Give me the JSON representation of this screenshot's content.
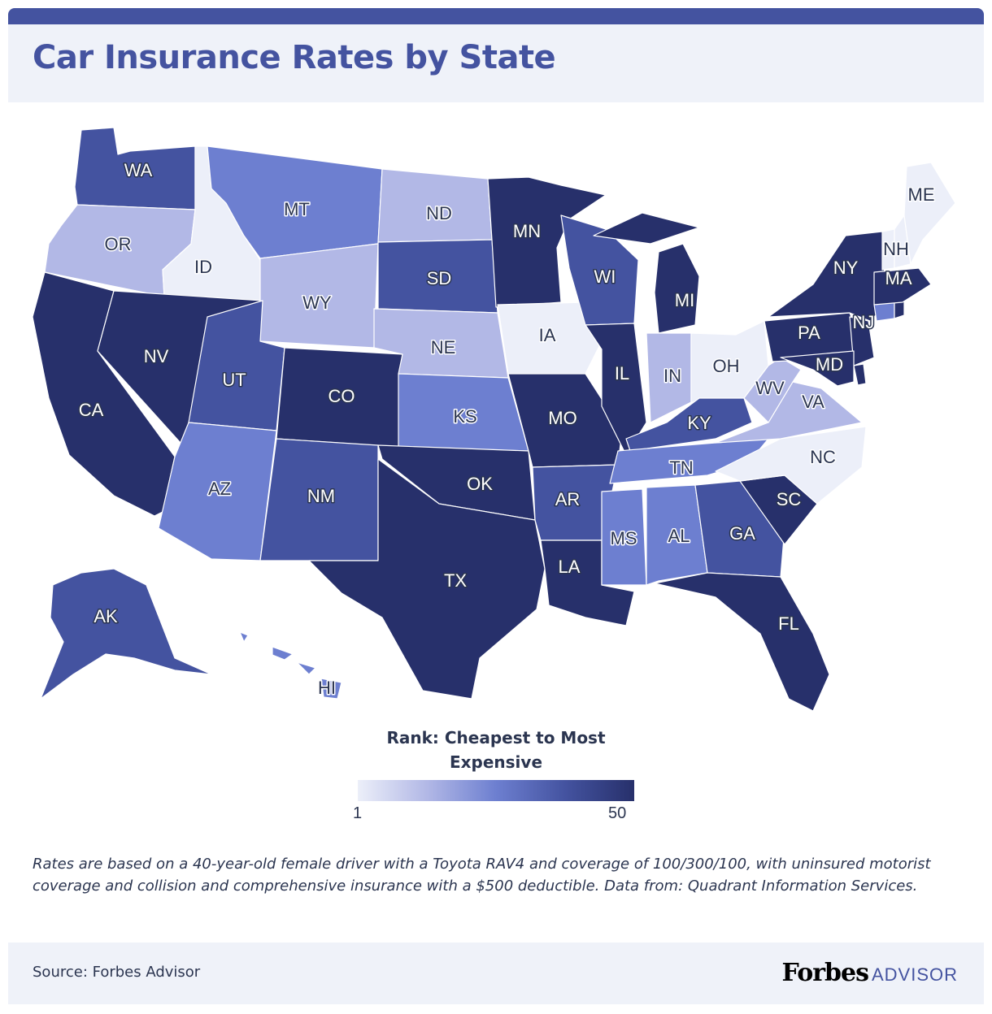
{
  "title": "Car Insurance Rates by State",
  "legend": {
    "title": "Rank: Cheapest to Most Expensive",
    "min": "1",
    "max": "50",
    "colors": [
      "#eceff9",
      "#b2b8e6",
      "#6d7fd0",
      "#4453a0",
      "#27306b"
    ]
  },
  "note": "Rates are based on a 40-year-old female driver with a Toyota RAV4 and coverage of 100/300/100, with uninsured motorist coverage and collision and comprehensive insurance with a $500 deductible. Data from: Quadrant Information Services.",
  "source": "Source: Forbes Advisor",
  "brand": {
    "main": "Forbes",
    "sub": "ADVISOR"
  },
  "states": {
    "WA": {
      "label": "WA",
      "level": 3
    },
    "OR": {
      "label": "OR",
      "level": 1
    },
    "CA": {
      "label": "CA",
      "level": 4
    },
    "ID": {
      "label": "ID",
      "level": 0
    },
    "NV": {
      "label": "NV",
      "level": 5
    },
    "MT": {
      "label": "MT",
      "level": 2
    },
    "WY": {
      "label": "WY",
      "level": 1
    },
    "UT": {
      "label": "UT",
      "level": 3
    },
    "AZ": {
      "label": "AZ",
      "level": 2
    },
    "CO": {
      "label": "CO",
      "level": 5
    },
    "NM": {
      "label": "NM",
      "level": 3
    },
    "ND": {
      "label": "ND",
      "level": 1
    },
    "SD": {
      "label": "SD",
      "level": 3
    },
    "NE": {
      "label": "NE",
      "level": 1
    },
    "KS": {
      "label": "KS",
      "level": 2
    },
    "OK": {
      "label": "OK",
      "level": 4
    },
    "TX": {
      "label": "TX",
      "level": 4
    },
    "MN": {
      "label": "MN",
      "level": 4
    },
    "IA": {
      "label": "IA",
      "level": 0
    },
    "MO": {
      "label": "MO",
      "level": 4
    },
    "AR": {
      "label": "AR",
      "level": 3
    },
    "LA": {
      "label": "LA",
      "level": 5
    },
    "WI": {
      "label": "WI",
      "level": 3
    },
    "IL": {
      "label": "IL",
      "level": 4
    },
    "MI": {
      "label": "MI",
      "level": 5
    },
    "IN": {
      "label": "IN",
      "level": 1
    },
    "OH": {
      "label": "OH",
      "level": 0
    },
    "KY": {
      "label": "KY",
      "level": 3
    },
    "TN": {
      "label": "TN",
      "level": 2
    },
    "MS": {
      "label": "MS",
      "level": 2
    },
    "AL": {
      "label": "AL",
      "level": 2
    },
    "GA": {
      "label": "GA",
      "level": 3
    },
    "FL": {
      "label": "FL",
      "level": 5
    },
    "SC": {
      "label": "SC",
      "level": 4
    },
    "NC": {
      "label": "NC",
      "level": 0
    },
    "VA": {
      "label": "VA",
      "level": 1
    },
    "WV": {
      "label": "WV",
      "level": 1
    },
    "PA": {
      "label": "PA",
      "level": 5
    },
    "NY": {
      "label": "NY",
      "level": 5
    },
    "NJ": {
      "label": "NJ",
      "level": 4
    },
    "DE": {
      "level": 4
    },
    "MD": {
      "label": "MD",
      "level": 5
    },
    "CT": {
      "level": 2
    },
    "RI": {
      "level": 5
    },
    "MA": {
      "label": "MA",
      "level": 4
    },
    "VT": {
      "level": 0
    },
    "NH": {
      "label": "NH",
      "level": 0
    },
    "ME": {
      "label": "ME",
      "level": 0
    },
    "AK": {
      "label": "AK",
      "level": 3
    },
    "HI": {
      "label": "HI",
      "level": 2
    }
  }
}
